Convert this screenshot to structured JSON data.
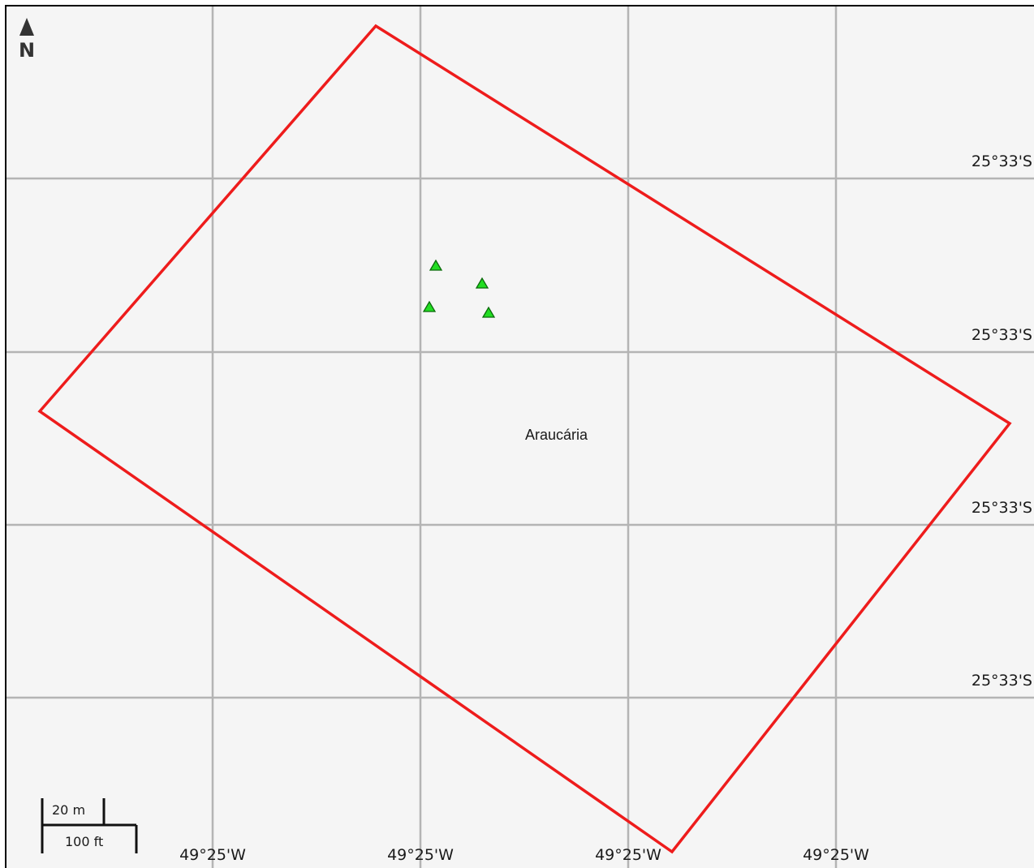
{
  "map": {
    "north_arrow": {
      "label": "N",
      "icon": "north-arrow-icon"
    },
    "latitude_labels": [
      "25°33'S",
      "25°33'S",
      "25°33'S",
      "25°33'S"
    ],
    "longitude_labels": [
      "49°25'W",
      "49°25'W",
      "49°25'W",
      "49°25'W"
    ],
    "place_label": "Araucária",
    "scale_bar": {
      "metric_label": "20 m",
      "imperial_label": "100 ft"
    },
    "colors": {
      "background": "#f5f5f5",
      "grid": "#b4b4b4",
      "boundary": "#ee1c1c",
      "marker_fill": "#22dd22",
      "marker_stroke": "#0a6a0a"
    },
    "markers": [
      {
        "name": "marker-1",
        "icon": "green-triangle-icon"
      },
      {
        "name": "marker-2",
        "icon": "green-triangle-icon"
      },
      {
        "name": "marker-3",
        "icon": "green-triangle-icon"
      },
      {
        "name": "marker-4",
        "icon": "green-triangle-icon"
      }
    ]
  }
}
